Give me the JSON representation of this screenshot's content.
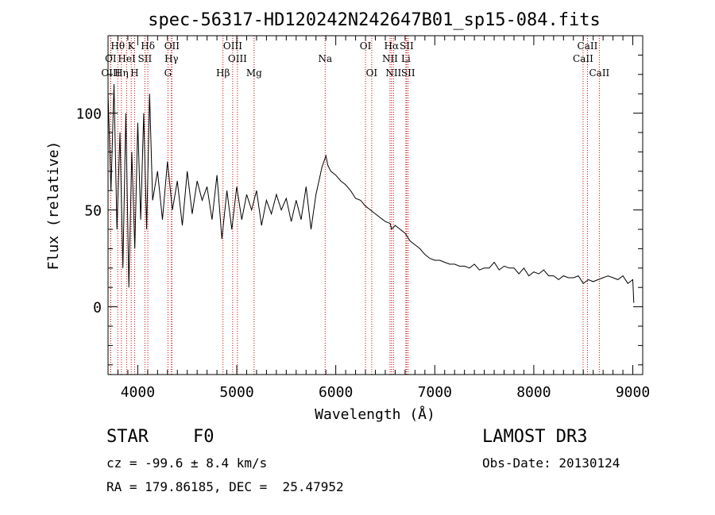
{
  "chart_data": {
    "type": "line",
    "title": "spec-56317-HD120242N242647B01_sp15-084.fits",
    "xlabel": "Wavelength (Å)",
    "ylabel": "Flux (relative)",
    "xlim": [
      3700,
      9100
    ],
    "ylim": [
      -35,
      140
    ],
    "xticks": [
      4000,
      5000,
      6000,
      7000,
      8000,
      9000
    ],
    "yticks": [
      0,
      50,
      100
    ],
    "grid": false,
    "series": [
      {
        "name": "flux",
        "x": [
          3700,
          3730,
          3760,
          3790,
          3820,
          3850,
          3880,
          3910,
          3940,
          3970,
          4000,
          4030,
          4060,
          4090,
          4120,
          4150,
          4200,
          4250,
          4300,
          4350,
          4400,
          4450,
          4500,
          4550,
          4600,
          4650,
          4700,
          4750,
          4800,
          4850,
          4900,
          4950,
          5000,
          5050,
          5100,
          5150,
          5200,
          5250,
          5300,
          5350,
          5400,
          5450,
          5500,
          5550,
          5600,
          5650,
          5700,
          5750,
          5800,
          5830,
          5860,
          5880,
          5900,
          5920,
          5950,
          6000,
          6050,
          6100,
          6150,
          6200,
          6250,
          6300,
          6350,
          6400,
          6450,
          6500,
          6550,
          6563,
          6600,
          6650,
          6700,
          6750,
          6800,
          6850,
          6900,
          6950,
          7000,
          7050,
          7100,
          7150,
          7200,
          7250,
          7300,
          7350,
          7400,
          7450,
          7500,
          7550,
          7600,
          7650,
          7700,
          7750,
          7800,
          7850,
          7900,
          7950,
          8000,
          8050,
          8100,
          8150,
          8200,
          8250,
          8300,
          8350,
          8400,
          8450,
          8500,
          8550,
          8600,
          8650,
          8700,
          8750,
          8800,
          8850,
          8900,
          8950,
          9000,
          9010
        ],
        "y": [
          110,
          60,
          115,
          40,
          90,
          20,
          100,
          10,
          80,
          30,
          95,
          45,
          100,
          40,
          110,
          55,
          70,
          45,
          75,
          50,
          65,
          42,
          70,
          48,
          65,
          55,
          62,
          45,
          68,
          35,
          60,
          40,
          62,
          45,
          58,
          50,
          60,
          42,
          55,
          48,
          58,
          50,
          56,
          44,
          55,
          45,
          62,
          40,
          58,
          65,
          72,
          75,
          78,
          73,
          70,
          68,
          65,
          63,
          60,
          56,
          55,
          52,
          50,
          48,
          46,
          44,
          43,
          40,
          42,
          40,
          38,
          34,
          32,
          30,
          27,
          25,
          24,
          24,
          23,
          22,
          22,
          21,
          21,
          20,
          22,
          19,
          20,
          20,
          23,
          19,
          21,
          20,
          20,
          17,
          20,
          16,
          18,
          17,
          19,
          16,
          16,
          14,
          16,
          15,
          15,
          16,
          12,
          14,
          13,
          14,
          15,
          16,
          15,
          14,
          16,
          12,
          14,
          2
        ]
      }
    ],
    "line_markers": [
      {
        "label": "Hθ",
        "wavelength": 3798,
        "row": 1
      },
      {
        "label": "K",
        "wavelength": 3934,
        "row": 1
      },
      {
        "label": "Hδ",
        "wavelength": 4102,
        "row": 1
      },
      {
        "label": "OII",
        "wavelength": 4345,
        "row": 1
      },
      {
        "label": "OIII",
        "wavelength": 4959,
        "row": 1
      },
      {
        "label": "OI",
        "wavelength": 6300,
        "row": 1
      },
      {
        "label": "Hα",
        "wavelength": 6563,
        "row": 1
      },
      {
        "label": "SII",
        "wavelength": 6716,
        "row": 1
      },
      {
        "label": "CaII",
        "wavelength": 8542,
        "row": 1
      },
      {
        "label": "OI",
        "wavelength": 3727,
        "row": 2
      },
      {
        "label": "HeI",
        "wavelength": 3889,
        "row": 2
      },
      {
        "label": "SII",
        "wavelength": 4072,
        "row": 2
      },
      {
        "label": "Hγ",
        "wavelength": 4340,
        "row": 2
      },
      {
        "label": "OIII",
        "wavelength": 5007,
        "row": 2
      },
      {
        "label": "NII",
        "wavelength": 6548,
        "row": 2
      },
      {
        "label": "Li",
        "wavelength": 6708,
        "row": 2
      },
      {
        "label": "CaII",
        "wavelength": 8498,
        "row": 2
      },
      {
        "label": "OIII",
        "wavelength": 3727,
        "row": 3
      },
      {
        "label": "Hη",
        "wavelength": 3835,
        "row": 3
      },
      {
        "label": "H",
        "wavelength": 3968,
        "row": 3
      },
      {
        "label": "G",
        "wavelength": 4305,
        "row": 3
      },
      {
        "label": "Hβ",
        "wavelength": 4861,
        "row": 3
      },
      {
        "label": "Mg",
        "wavelength": 5175,
        "row": 3
      },
      {
        "label": "Na",
        "wavelength": 5893,
        "row": 2
      },
      {
        "label": "OI",
        "wavelength": 6363,
        "row": 3
      },
      {
        "label": "NII",
        "wavelength": 6583,
        "row": 3
      },
      {
        "label": "SII",
        "wavelength": 6731,
        "row": 3
      },
      {
        "label": "CaII",
        "wavelength": 8662,
        "row": 3
      }
    ]
  },
  "footer": {
    "object_class": "STAR",
    "subclass": "F0",
    "redshift": "cz = -99.6 ± 8.4 km/s",
    "coordinates": "RA = 179.86185, DEC =  25.47952",
    "survey": "LAMOST DR3",
    "obs_date": "Obs-Date: 20130124"
  },
  "colors": {
    "axes": "#000000",
    "spectrum": "#000000",
    "marker_lines": "#cc0000"
  }
}
